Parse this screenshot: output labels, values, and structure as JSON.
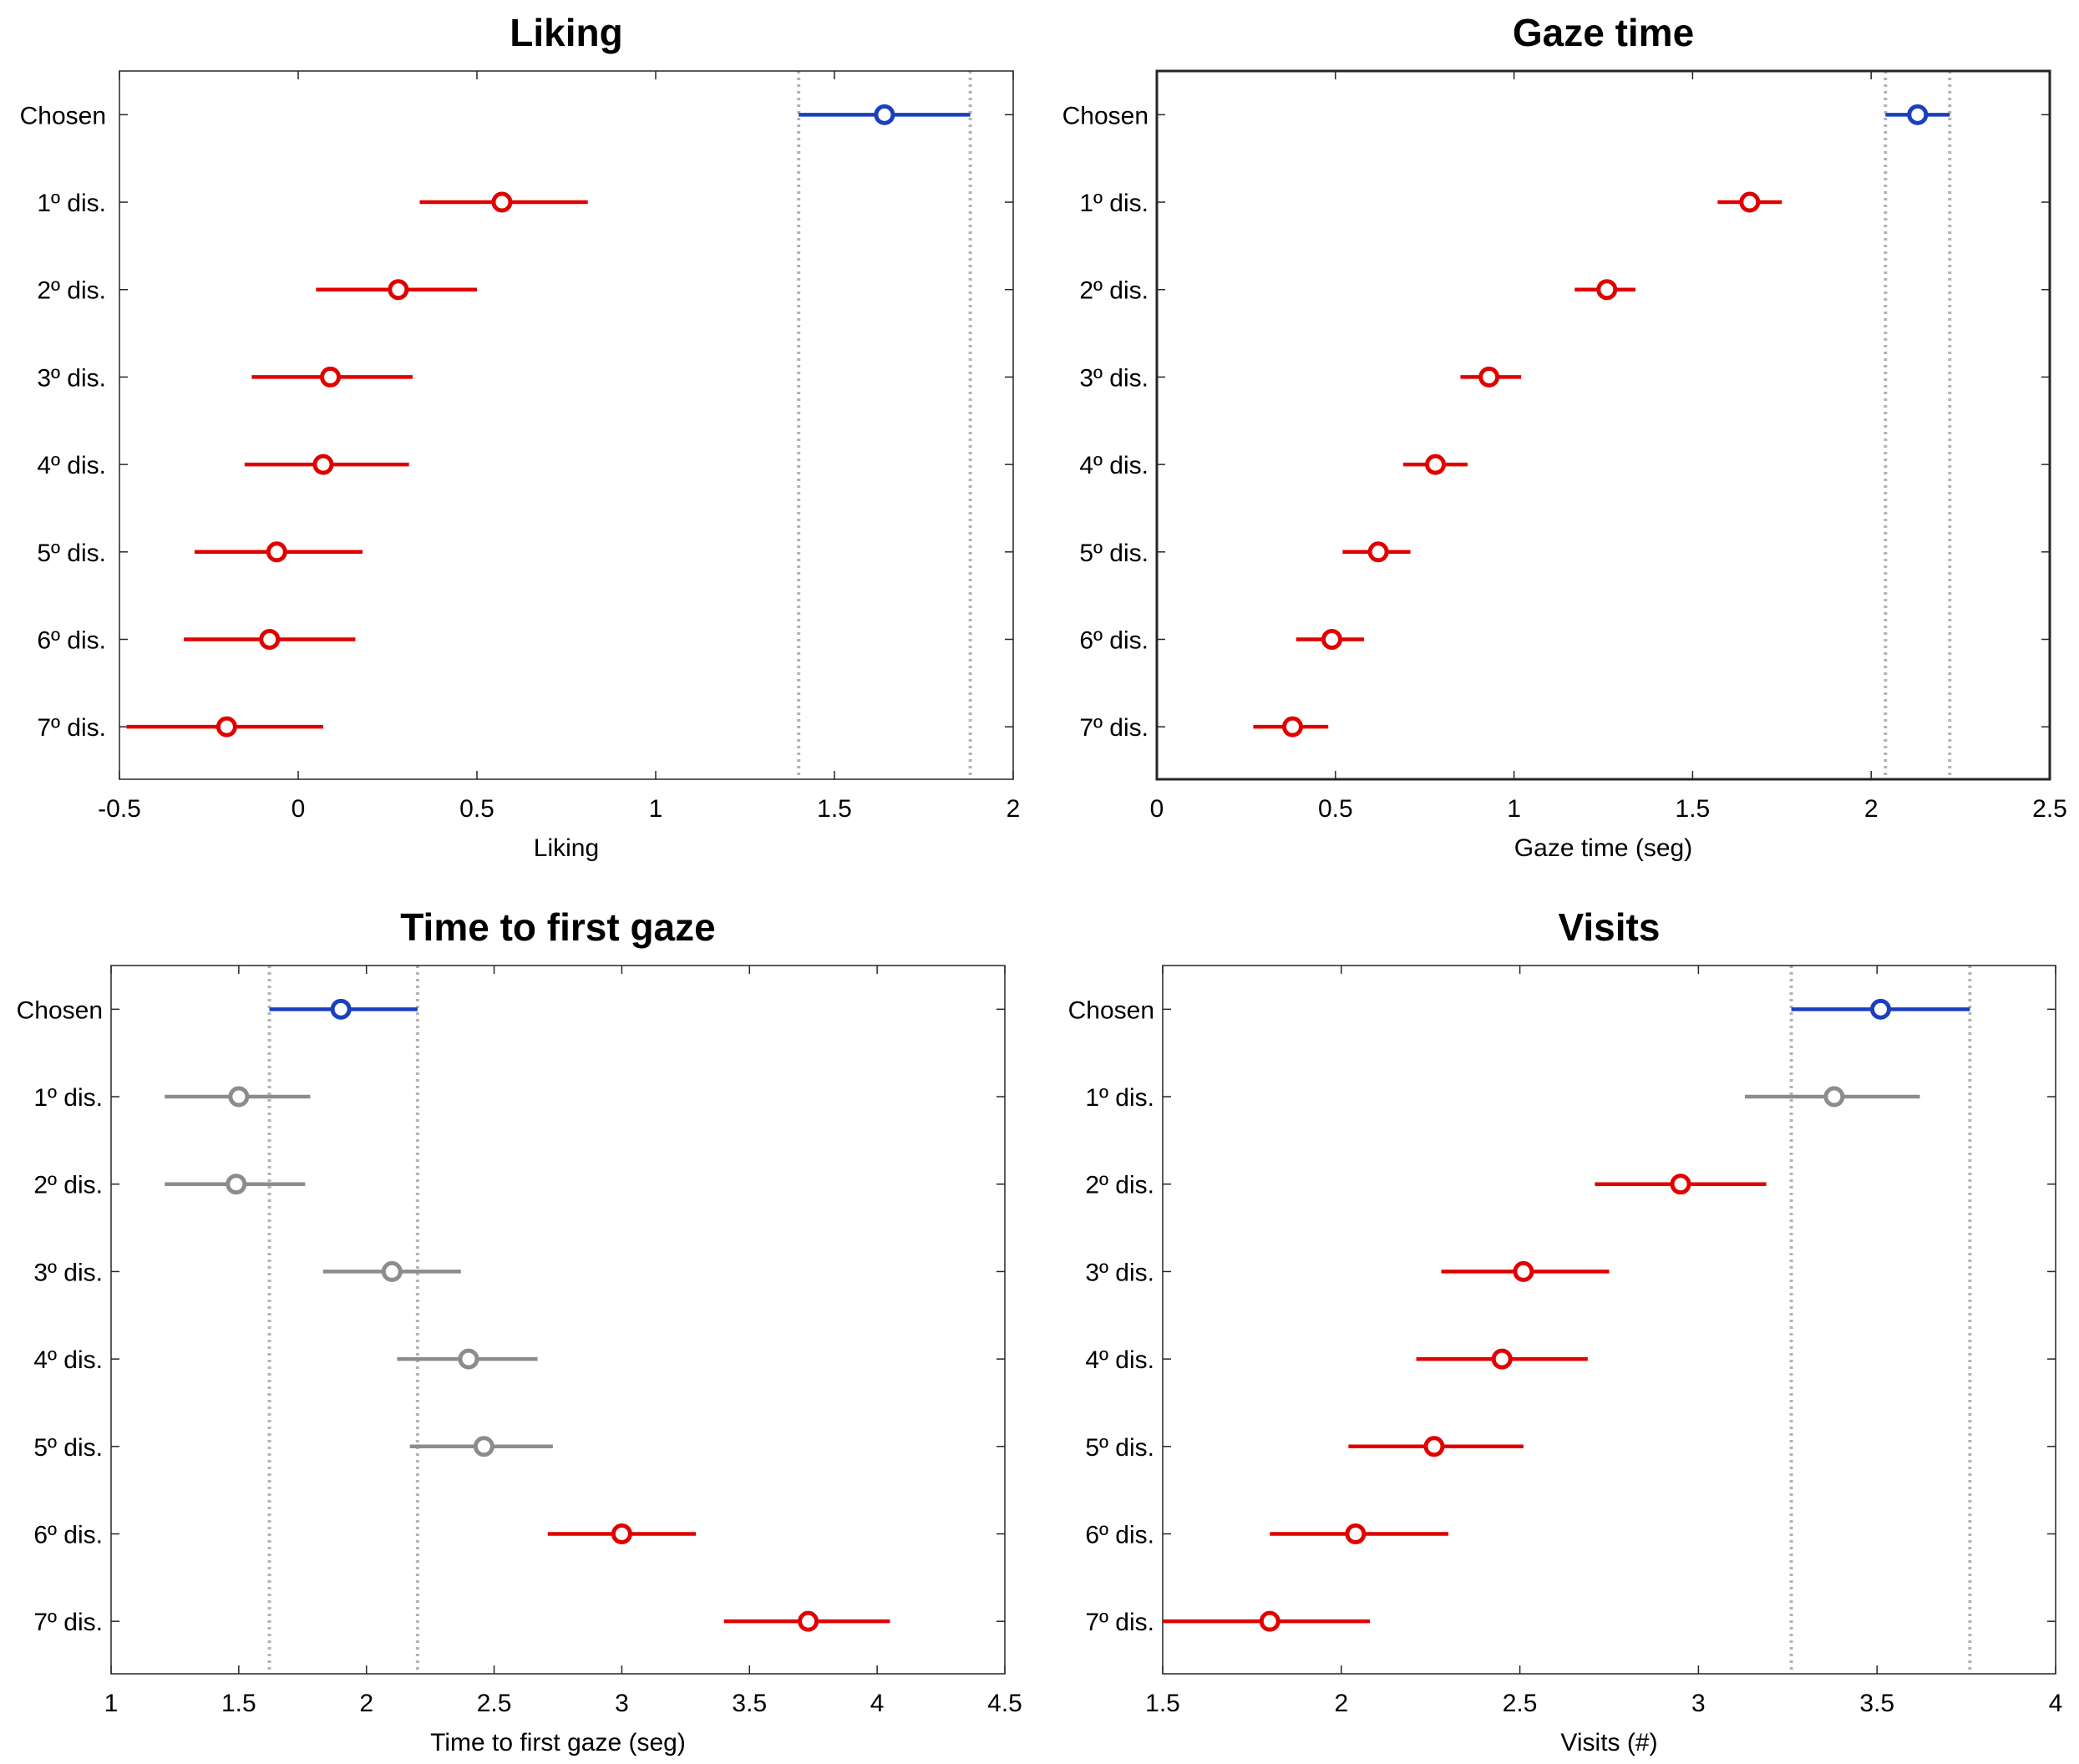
{
  "colors": {
    "chosen": "#1a3fbf",
    "significant": "#e00000",
    "nonsignificant": "#8c8c8c",
    "reference": "#b3b3b3",
    "axis": "#262626"
  },
  "chart_data": [
    {
      "type": "scatter",
      "title": "Liking",
      "xlabel": "Liking",
      "xlim": [
        -0.5,
        2
      ],
      "xticks": [
        -0.5,
        0,
        0.5,
        1,
        1.5,
        2
      ],
      "xtick_labels": [
        "-0.5",
        "0",
        "0.5",
        "1",
        "1.5",
        "2"
      ],
      "categories": [
        "Chosen",
        "1º dis.",
        "2º dis.",
        "3º dis.",
        "4º dis.",
        "5º dis.",
        "6º dis.",
        "7º dis."
      ],
      "means": [
        1.64,
        0.57,
        0.28,
        0.09,
        0.07,
        -0.06,
        -0.08,
        -0.2
      ],
      "ci_low": [
        1.4,
        0.34,
        0.05,
        -0.13,
        -0.15,
        -0.29,
        -0.32,
        -0.48
      ],
      "ci_high": [
        1.88,
        0.81,
        0.5,
        0.32,
        0.31,
        0.18,
        0.16,
        0.07
      ],
      "status": [
        "chosen",
        "significant",
        "significant",
        "significant",
        "significant",
        "significant",
        "significant",
        "significant"
      ],
      "reference_lines": [
        1.4,
        1.88
      ]
    },
    {
      "type": "scatter",
      "title": "Gaze time",
      "xlabel": "Gaze time (seg)",
      "xlim": [
        0,
        2.5
      ],
      "xticks": [
        0,
        0.5,
        1,
        1.5,
        2,
        2.5
      ],
      "xtick_labels": [
        "0",
        "0.5",
        "1",
        "1.5",
        "2",
        "2.5"
      ],
      "categories": [
        "Chosen",
        "1º dis.",
        "2º dis.",
        "3º dis.",
        "4º dis.",
        "5º dis.",
        "6º dis.",
        "7º dis."
      ],
      "means": [
        2.13,
        1.66,
        1.26,
        0.93,
        0.78,
        0.62,
        0.49,
        0.38
      ],
      "ci_low": [
        2.04,
        1.57,
        1.17,
        0.85,
        0.69,
        0.52,
        0.39,
        0.27
      ],
      "ci_high": [
        2.22,
        1.75,
        1.34,
        1.02,
        0.87,
        0.71,
        0.58,
        0.48
      ],
      "status": [
        "chosen",
        "significant",
        "significant",
        "significant",
        "significant",
        "significant",
        "significant",
        "significant"
      ],
      "reference_lines": [
        2.04,
        2.22
      ]
    },
    {
      "type": "scatter",
      "title": "Time to first gaze",
      "xlabel": "Time to first gaze (seg)",
      "xlim": [
        1,
        4.5
      ],
      "xticks": [
        1,
        1.5,
        2,
        2.5,
        3,
        3.5,
        4,
        4.5
      ],
      "xtick_labels": [
        "1",
        "1.5",
        "2",
        "2.5",
        "3",
        "3.5",
        "4",
        "4.5"
      ],
      "categories": [
        "Chosen",
        "1º dis.",
        "2º dis.",
        "3º dis.",
        "4º dis.",
        "5º dis.",
        "6º dis.",
        "7º dis."
      ],
      "means": [
        1.9,
        1.5,
        1.49,
        2.1,
        2.4,
        2.46,
        3.0,
        3.73
      ],
      "ci_low": [
        1.62,
        1.21,
        1.21,
        1.83,
        2.12,
        2.17,
        2.71,
        3.4
      ],
      "ci_high": [
        2.2,
        1.78,
        1.76,
        2.37,
        2.67,
        2.73,
        3.29,
        4.05
      ],
      "status": [
        "chosen",
        "nonsignificant",
        "nonsignificant",
        "nonsignificant",
        "nonsignificant",
        "nonsignificant",
        "significant",
        "significant"
      ],
      "reference_lines": [
        1.62,
        2.2
      ]
    },
    {
      "type": "scatter",
      "title": "Visits",
      "xlabel": "Visits (#)",
      "xlim": [
        1.5,
        4
      ],
      "xticks": [
        1.5,
        2,
        2.5,
        3,
        3.5,
        4
      ],
      "xtick_labels": [
        "1.5",
        "2",
        "2.5",
        "3",
        "3.5",
        "4"
      ],
      "categories": [
        "Chosen",
        "1º dis.",
        "2º dis.",
        "3º dis.",
        "4º dis.",
        "5º dis.",
        "6º dis.",
        "7º dis."
      ],
      "means": [
        3.51,
        3.38,
        2.95,
        2.51,
        2.45,
        2.26,
        2.04,
        1.8
      ],
      "ci_low": [
        3.26,
        3.13,
        2.71,
        2.28,
        2.21,
        2.02,
        1.8,
        1.5
      ],
      "ci_high": [
        3.76,
        3.62,
        3.19,
        2.75,
        2.69,
        2.51,
        2.3,
        2.08
      ],
      "status": [
        "chosen",
        "nonsignificant",
        "significant",
        "significant",
        "significant",
        "significant",
        "significant",
        "significant"
      ],
      "reference_lines": [
        3.26,
        3.76
      ]
    }
  ]
}
